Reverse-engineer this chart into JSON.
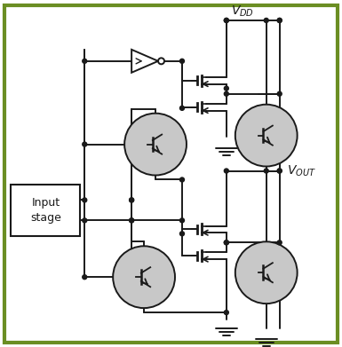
{
  "bg_color": "#ffffff",
  "border_color": "#6b8e23",
  "line_color": "#1a1a1a",
  "circle_fill": "#c8c8c8",
  "figsize": [
    3.85,
    3.91
  ],
  "dpi": 100
}
